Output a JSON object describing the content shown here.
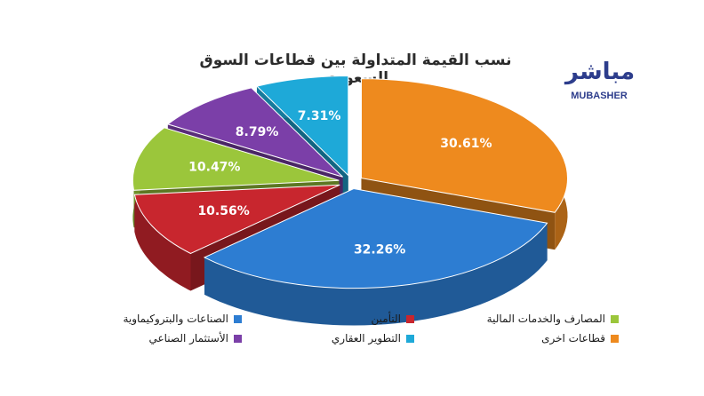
{
  "logo": {
    "arabic": "مباشر",
    "latin": "MUBASHER"
  },
  "chart_data": {
    "type": "pie",
    "title": "نسب القيمة المتداولة بين قطاعات السوق السعودي",
    "slices": [
      {
        "name": "قطاعات اخرى",
        "value": 30.61,
        "label": "30.61%",
        "color": "#ee8a1e"
      },
      {
        "name": "الصناعات والبتروكيماوية",
        "value": 32.26,
        "label": "32.26%",
        "color": "#2d7dd2"
      },
      {
        "name": "التأمين",
        "value": 10.56,
        "label": "10.56%",
        "color": "#c8262e"
      },
      {
        "name": "المصارف والخدمات المالية",
        "value": 10.47,
        "label": "10.47%",
        "color": "#9bc63b"
      },
      {
        "name": "الأستثمار الصناعي",
        "value": 8.79,
        "label": "8.79%",
        "color": "#7b3fa8"
      },
      {
        "name": "التطوير العقاري",
        "value": 7.31,
        "label": "7.31%",
        "color": "#1ea9d8"
      }
    ],
    "legend_position": "bottom"
  }
}
